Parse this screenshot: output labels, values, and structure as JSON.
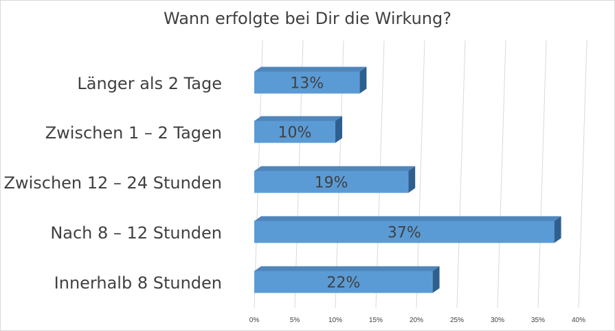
{
  "chart_data": {
    "type": "bar",
    "orientation": "horizontal",
    "style": "3d",
    "title": "Wann erfolgte bei Dir die Wirkung?",
    "categories": [
      "Länger als 2 Tage",
      "Zwischen 1 – 2 Tagen",
      "Zwischen 12 – 24 Stunden",
      "Nach 8 – 12 Stunden",
      "Innerhalb 8 Stunden"
    ],
    "values": [
      13,
      10,
      19,
      37,
      22
    ],
    "data_labels": [
      "13%",
      "10%",
      "19%",
      "37%",
      "22%"
    ],
    "xlim": [
      0,
      40
    ],
    "x_ticks": [
      0,
      5,
      10,
      15,
      20,
      25,
      30,
      35,
      40
    ],
    "x_tick_labels": [
      "0%",
      "5%",
      "10%",
      "15%",
      "20%",
      "25%",
      "30%",
      "35%",
      "40%"
    ],
    "grid": true,
    "colors": {
      "bar_front": "#5b9bd5",
      "bar_top": "#4f86bb",
      "bar_side": "#2e5f8f",
      "grid": "#d9d9d9",
      "text": "#404040"
    }
  }
}
